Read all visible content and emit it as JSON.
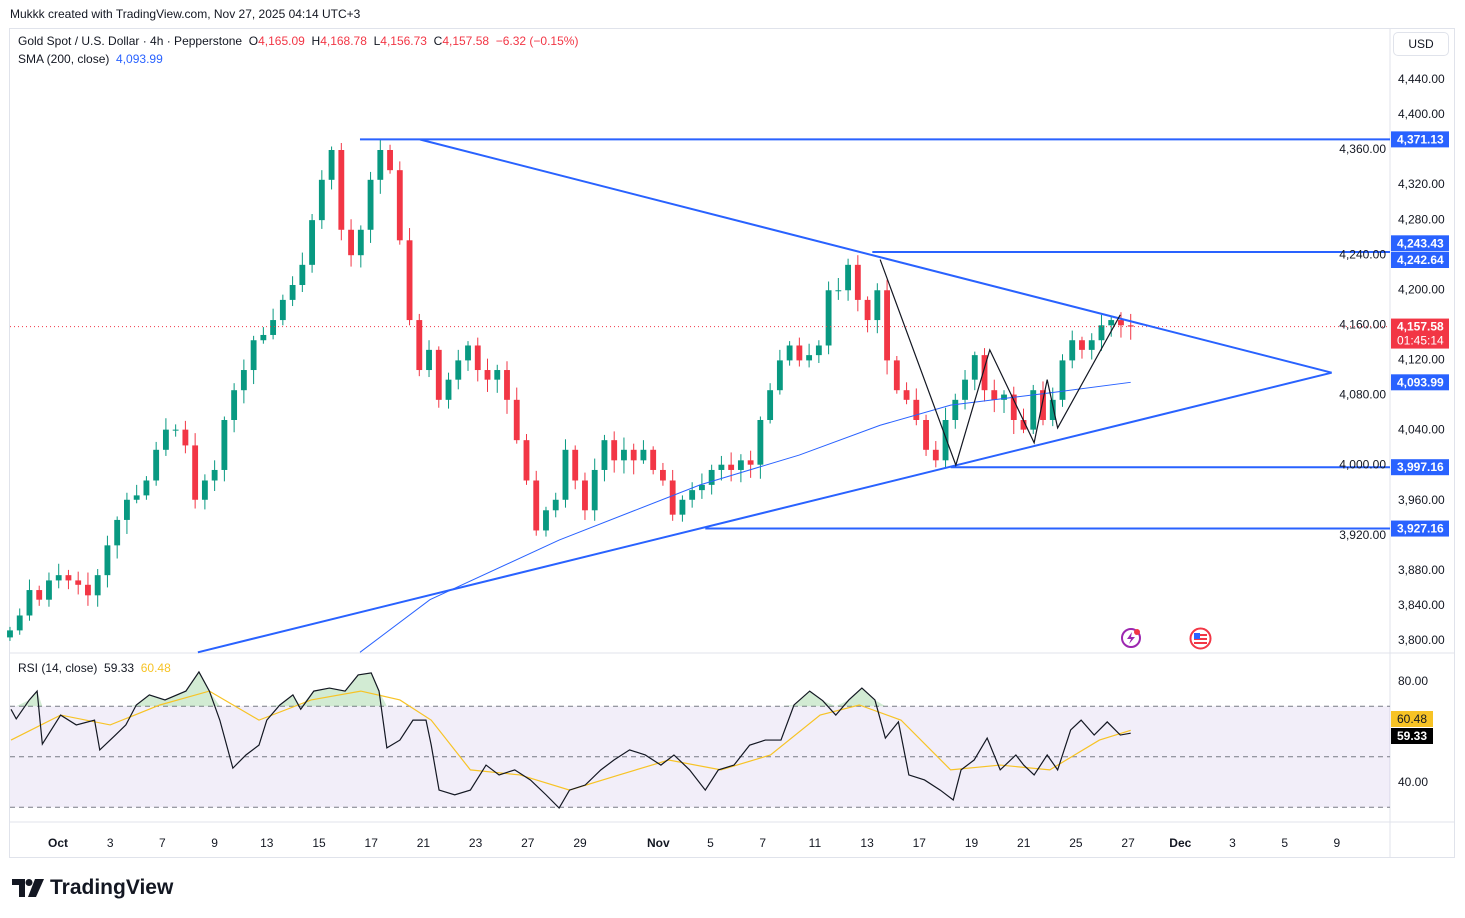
{
  "credit": "Mukkk created with TradingView.com, Nov 27, 2025 04:14 UTC+3",
  "header": {
    "symbol": "Gold Spot / U.S. Dollar · 4h · Pepperstone",
    "o_label": "O",
    "open": "4,165.09",
    "h_label": "H",
    "high": "4,168.78",
    "l_label": "L",
    "low": "4,156.73",
    "c_label": "C",
    "close": "4,157.58",
    "change": "−6.32 (−0.15%)",
    "sma_label": "SMA (200, close)",
    "sma_value": "4,093.99"
  },
  "currency_button": "USD",
  "rsi_legend": {
    "label": "RSI (14, close)",
    "value": "59.33",
    "ma_value": "60.48"
  },
  "brand": "TradingView",
  "colors": {
    "up": "#089981",
    "down": "#f23645",
    "drawing": "#2962ff",
    "sma": "#2962ff",
    "rsi": "#131722",
    "rsi_ma": "#f7c325",
    "rsi_band": "#7e57c2"
  },
  "chart_data": {
    "type": "candlestick",
    "title": "Gold Spot / U.S. Dollar · 4h · Pepperstone",
    "x_unit": "trading sessions since Oct 1",
    "price_axis": {
      "ylim": [
        3790,
        4460
      ],
      "ticks": [
        "4,440.00",
        "4,400.00",
        "4,360.00",
        "4,320.00",
        "4,280.00",
        "4,240.00",
        "4,200.00",
        "4,160.00",
        "4,120.00",
        "4,080.00",
        "4,040.00",
        "4,000.00",
        "3,960.00",
        "3,920.00",
        "3,880.00",
        "3,840.00",
        "3,800.00"
      ],
      "tick_values": [
        4440,
        4400,
        4360,
        4320,
        4280,
        4240,
        4200,
        4160,
        4120,
        4080,
        4040,
        4000,
        3960,
        3920,
        3880,
        3840,
        3800
      ]
    },
    "date_ticks": [
      {
        "label": "Oct",
        "s": 0
      },
      {
        "label": "3",
        "s": 2
      },
      {
        "label": "7",
        "s": 4
      },
      {
        "label": "9",
        "s": 6
      },
      {
        "label": "13",
        "s": 8
      },
      {
        "label": "15",
        "s": 10
      },
      {
        "label": "17",
        "s": 12
      },
      {
        "label": "21",
        "s": 14
      },
      {
        "label": "23",
        "s": 16
      },
      {
        "label": "27",
        "s": 18
      },
      {
        "label": "29",
        "s": 20
      },
      {
        "label": "Nov",
        "s": 23
      },
      {
        "label": "5",
        "s": 25
      },
      {
        "label": "7",
        "s": 27
      },
      {
        "label": "11",
        "s": 29
      },
      {
        "label": "13",
        "s": 31
      },
      {
        "label": "17",
        "s": 33
      },
      {
        "label": "19",
        "s": 35
      },
      {
        "label": "21",
        "s": 37
      },
      {
        "label": "25",
        "s": 39
      },
      {
        "label": "27",
        "s": 41
      },
      {
        "label": "Dec",
        "s": 43
      },
      {
        "label": "3",
        "s": 45
      },
      {
        "label": "5",
        "s": 47
      },
      {
        "label": "9",
        "s": 49
      }
    ],
    "closes_range": [
      -1.84,
      41.1
    ],
    "closes": [
      3811,
      3828,
      3857,
      3846,
      3868,
      3874,
      3868,
      3863,
      3851,
      3874,
      3908,
      3937,
      3960,
      3965,
      3982,
      4017,
      4040,
      4040,
      4022,
      3960,
      3982,
      3994,
      4051,
      4085,
      4108,
      4142,
      4148,
      4165,
      4188,
      4205,
      4228,
      4279,
      4325,
      4359,
      4268,
      4239,
      4268,
      4325,
      4359,
      4336,
      4256,
      4165,
      4108,
      4131,
      4074,
      4097,
      4119,
      4136,
      4108,
      4097,
      4108,
      4074,
      4028,
      3982,
      3925,
      3948,
      3960,
      4017,
      3982,
      3948,
      3994,
      4028,
      4005,
      4017,
      4005,
      4017,
      3994,
      3982,
      3943,
      3960,
      3971,
      3977,
      3994,
      4000,
      3994,
      4005,
      4000,
      4051,
      4085,
      4119,
      4136,
      4119,
      4125,
      4136,
      4199,
      4199,
      4228,
      4188,
      4165,
      4199,
      4119,
      4085,
      4074,
      4051,
      4017,
      4005,
      4051,
      4074,
      4097,
      4125,
      4085,
      4074,
      4080,
      4051,
      4040,
      4085,
      4051,
      4074,
      4119,
      4142,
      4131,
      4142,
      4159,
      4165,
      4159,
      4157.58
    ],
    "sma200": [
      [
        11.57,
        3786
      ],
      [
        14.25,
        3846
      ],
      [
        19.2,
        3914
      ],
      [
        24.6,
        3977
      ],
      [
        28.4,
        4011
      ],
      [
        31.5,
        4045
      ],
      [
        34.2,
        4068
      ],
      [
        38,
        4082
      ],
      [
        41.1,
        4093.99
      ]
    ],
    "last_price": {
      "value": 4157.58,
      "label": "4,157.58",
      "countdown": "01:45:14"
    },
    "sma_label": {
      "value": 4093.99,
      "label": "4,093.99"
    },
    "horizontal_levels": [
      {
        "value": 4371.13,
        "label": "4,371.13",
        "from_s": 11.57
      },
      {
        "value": 4243.43,
        "label": "4,243.43",
        "from_s": 31.2,
        "label_only": true
      },
      {
        "value": 4242.64,
        "label": "4,242.64",
        "from_s": 31.2
      },
      {
        "value": 3997.16,
        "label": "3,997.16",
        "from_s": 34.2
      },
      {
        "value": 3927.16,
        "label": "3,927.16",
        "from_s": 24.8
      }
    ],
    "triangle": {
      "upper": [
        [
          13.87,
          4371
        ],
        [
          48.8,
          4105
        ]
      ],
      "lower": [
        [
          5.36,
          3786
        ],
        [
          48.8,
          4105
        ]
      ]
    },
    "zigzag": [
      [
        31.5,
        4234
      ],
      [
        34.4,
        3999.6
      ],
      [
        35.7,
        4131
      ],
      [
        37.4,
        4025
      ],
      [
        37.9,
        4097
      ],
      [
        38.3,
        4042
      ],
      [
        40.7,
        4171
      ]
    ],
    "rsi": {
      "ylim": [
        24,
        92
      ],
      "bands": [
        70,
        50,
        30
      ],
      "ticks": [
        "80.00",
        "40.00"
      ],
      "tick_values": [
        80,
        40
      ],
      "value_label": "59.33",
      "ma_label": "60.48",
      "series": [
        [
          -1.8,
          68.8
        ],
        [
          -1.6,
          65
        ],
        [
          -1.1,
          72.5
        ],
        [
          -0.8,
          76
        ],
        [
          -0.6,
          55
        ],
        [
          0.1,
          66.5
        ],
        [
          0.7,
          62.6
        ],
        [
          1.4,
          64.5
        ],
        [
          1.6,
          52.7
        ],
        [
          2.2,
          58.6
        ],
        [
          2.6,
          62.6
        ],
        [
          3.0,
          70.5
        ],
        [
          3.5,
          74.5
        ],
        [
          4.1,
          72.5
        ],
        [
          4.9,
          76
        ],
        [
          5.4,
          83.6
        ],
        [
          5.8,
          76
        ],
        [
          6.2,
          64.5
        ],
        [
          6.7,
          45.5
        ],
        [
          7.2,
          50.7
        ],
        [
          7.7,
          54.6
        ],
        [
          8.0,
          64.5
        ],
        [
          8.5,
          70.5
        ],
        [
          9.0,
          74.5
        ],
        [
          9.3,
          68.8
        ],
        [
          9.8,
          76
        ],
        [
          10.4,
          77.2
        ],
        [
          11.0,
          76
        ],
        [
          11.5,
          82.4
        ],
        [
          12.0,
          83.2
        ],
        [
          12.3,
          76
        ],
        [
          12.6,
          53.5
        ],
        [
          13.1,
          56.6
        ],
        [
          13.6,
          64.5
        ],
        [
          14.1,
          64.5
        ],
        [
          14.3,
          54.6
        ],
        [
          14.6,
          36.8
        ],
        [
          15.2,
          34.9
        ],
        [
          15.8,
          36.8
        ],
        [
          16.4,
          46.7
        ],
        [
          16.9,
          42.8
        ],
        [
          17.5,
          44.8
        ],
        [
          18.1,
          40.8
        ],
        [
          18.7,
          34.9
        ],
        [
          19.2,
          29.7
        ],
        [
          19.6,
          36.8
        ],
        [
          20.2,
          38.8
        ],
        [
          20.8,
          44.8
        ],
        [
          21.3,
          48.7
        ],
        [
          21.9,
          52.7
        ],
        [
          22.5,
          50.7
        ],
        [
          23.1,
          46.7
        ],
        [
          23.6,
          50.7
        ],
        [
          24.2,
          44.8
        ],
        [
          24.8,
          36.8
        ],
        [
          25.3,
          44.8
        ],
        [
          25.9,
          46.7
        ],
        [
          26.5,
          54.6
        ],
        [
          27.1,
          56.6
        ],
        [
          27.7,
          56.6
        ],
        [
          28.2,
          70.5
        ],
        [
          28.8,
          76
        ],
        [
          29.3,
          72.2
        ],
        [
          29.8,
          66.5
        ],
        [
          30.3,
          72.5
        ],
        [
          30.8,
          77.2
        ],
        [
          31.3,
          72.5
        ],
        [
          31.7,
          57.4
        ],
        [
          32.2,
          63.8
        ],
        [
          32.6,
          42.8
        ],
        [
          33.2,
          40.8
        ],
        [
          33.8,
          36.8
        ],
        [
          34.3,
          32.9
        ],
        [
          34.6,
          44.8
        ],
        [
          35.1,
          48.7
        ],
        [
          35.6,
          57.4
        ],
        [
          36.1,
          44.8
        ],
        [
          36.7,
          50.7
        ],
        [
          37.0,
          46.7
        ],
        [
          37.4,
          42.8
        ],
        [
          37.9,
          50.7
        ],
        [
          38.3,
          44.8
        ],
        [
          38.8,
          60.6
        ],
        [
          39.2,
          64.5
        ],
        [
          39.7,
          58.6
        ],
        [
          40.2,
          63.8
        ],
        [
          40.7,
          58.6
        ],
        [
          41.1,
          59.33
        ]
      ],
      "ma": [
        [
          -1.8,
          56.6
        ],
        [
          0.1,
          66.5
        ],
        [
          2.0,
          62.6
        ],
        [
          3.9,
          70.5
        ],
        [
          5.8,
          76
        ],
        [
          7.7,
          64.5
        ],
        [
          9.7,
          72.5
        ],
        [
          11.6,
          76
        ],
        [
          13.1,
          72.5
        ],
        [
          14.3,
          64.5
        ],
        [
          15.8,
          44.8
        ],
        [
          17.7,
          42.8
        ],
        [
          19.6,
          36.8
        ],
        [
          21.5,
          42.8
        ],
        [
          23.4,
          48.7
        ],
        [
          25.4,
          44.8
        ],
        [
          27.3,
          50.7
        ],
        [
          29.2,
          66.5
        ],
        [
          30.7,
          70.5
        ],
        [
          32.3,
          64.5
        ],
        [
          34.2,
          44.8
        ],
        [
          36.1,
          46.7
        ],
        [
          38.0,
          44.8
        ],
        [
          39.9,
          56.6
        ],
        [
          41.1,
          60.48
        ]
      ]
    }
  }
}
